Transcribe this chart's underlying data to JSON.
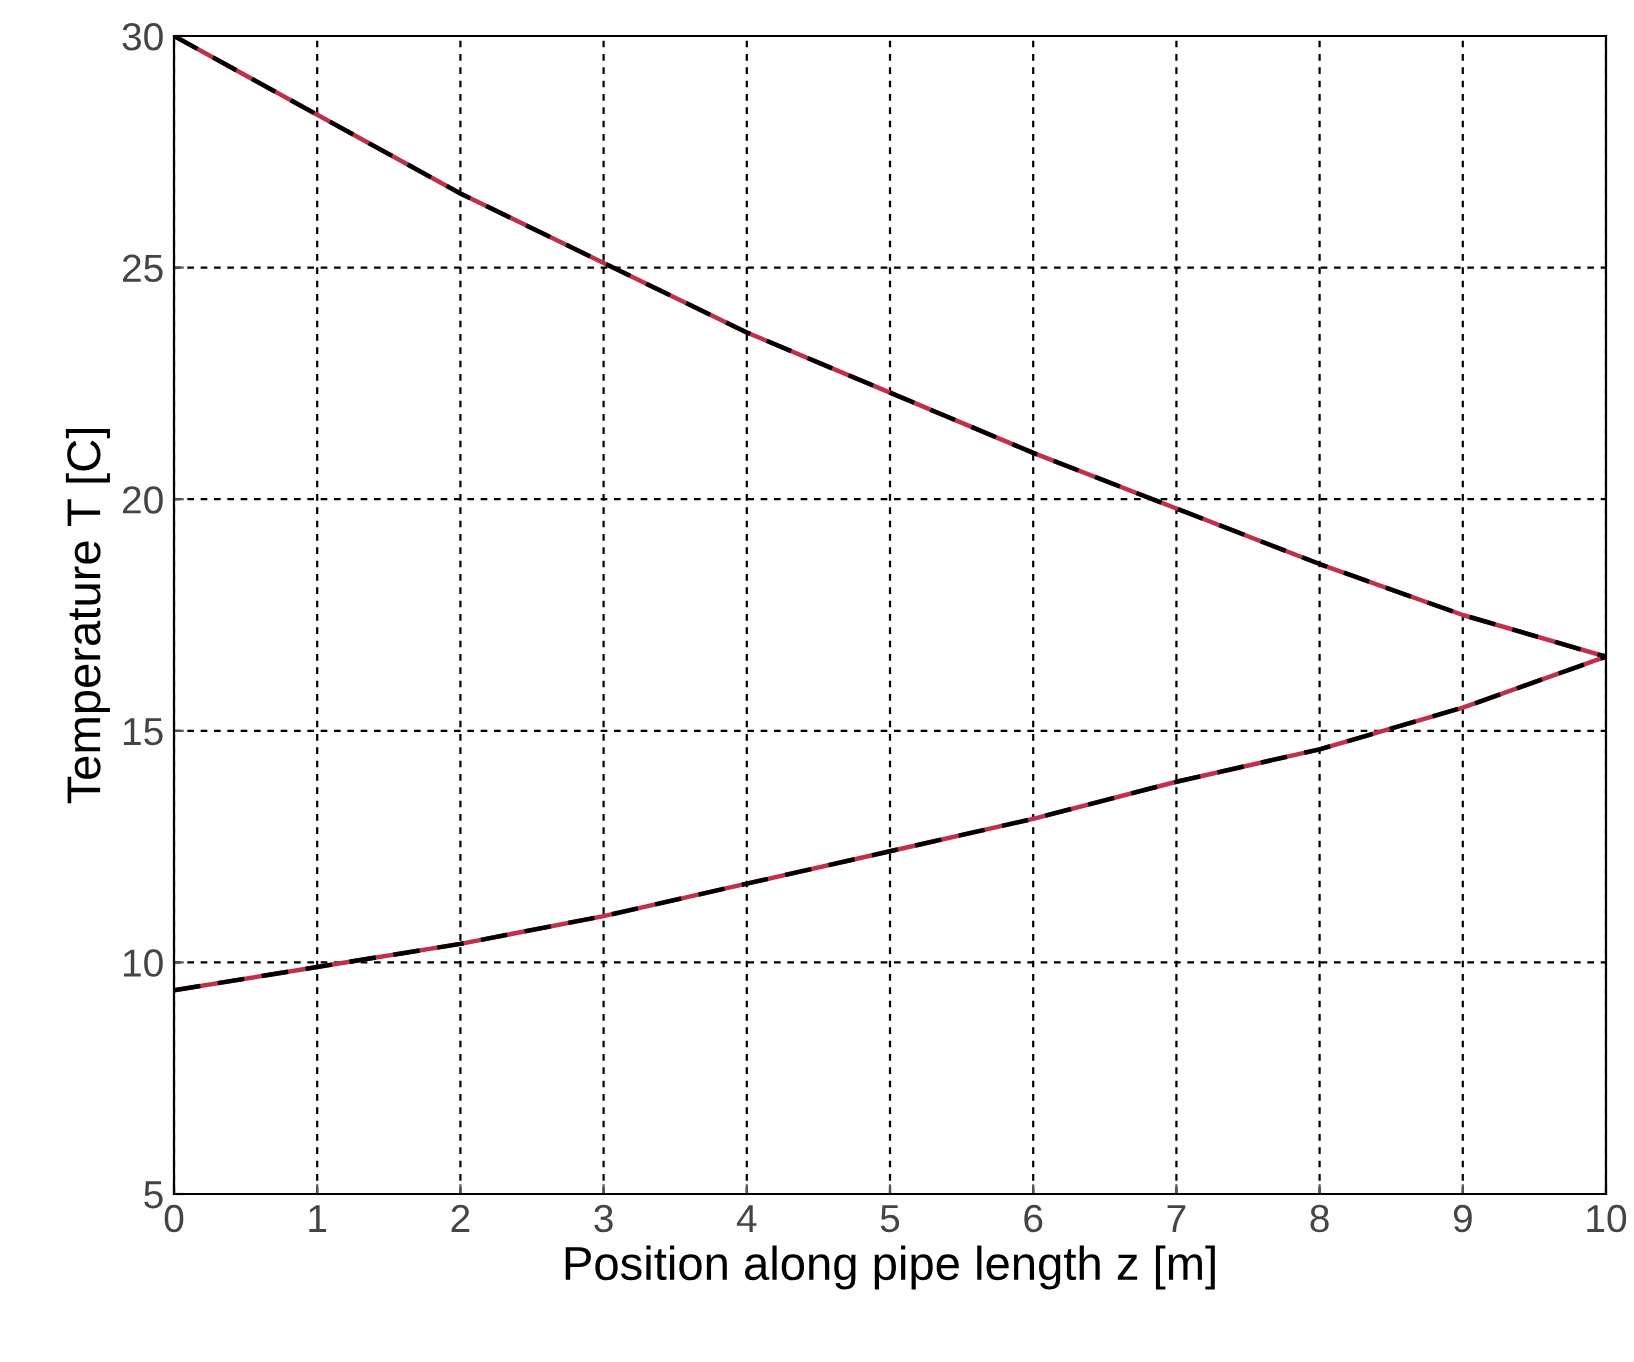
{
  "chart_data": {
    "type": "line",
    "xlabel": "Position along pipe length z [m]",
    "ylabel": "Temperature T [C]",
    "x": [
      0,
      1,
      2,
      3,
      4,
      5,
      6,
      7,
      8,
      9,
      10
    ],
    "series": [
      {
        "color": "#c0304a",
        "line_style": "solid",
        "values": [
          30,
          28.3,
          26.6,
          25.1,
          23.6,
          22.3,
          21.0,
          19.8,
          18.6,
          17.5,
          16.6
        ]
      },
      {
        "color": "#000000",
        "line_style": "dashed",
        "values": [
          30,
          28.3,
          26.6,
          25.1,
          23.6,
          22.3,
          21.0,
          19.8,
          18.6,
          17.5,
          16.6
        ]
      },
      {
        "color": "#c0304a",
        "line_style": "solid",
        "values": [
          9.4,
          9.9,
          10.4,
          11.0,
          11.7,
          12.4,
          13.1,
          13.9,
          14.6,
          15.5,
          16.6
        ]
      },
      {
        "color": "#000000",
        "line_style": "dashed",
        "values": [
          9.4,
          9.9,
          10.4,
          11.0,
          11.7,
          12.4,
          13.1,
          13.9,
          14.6,
          15.5,
          16.6
        ]
      }
    ],
    "xlim": [
      0,
      10
    ],
    "ylim": [
      5,
      30
    ],
    "xticks": [
      0,
      1,
      2,
      3,
      4,
      5,
      6,
      7,
      8,
      9,
      10
    ],
    "yticks": [
      5,
      10,
      15,
      20,
      25,
      30
    ],
    "grid": true,
    "marker": "none"
  }
}
